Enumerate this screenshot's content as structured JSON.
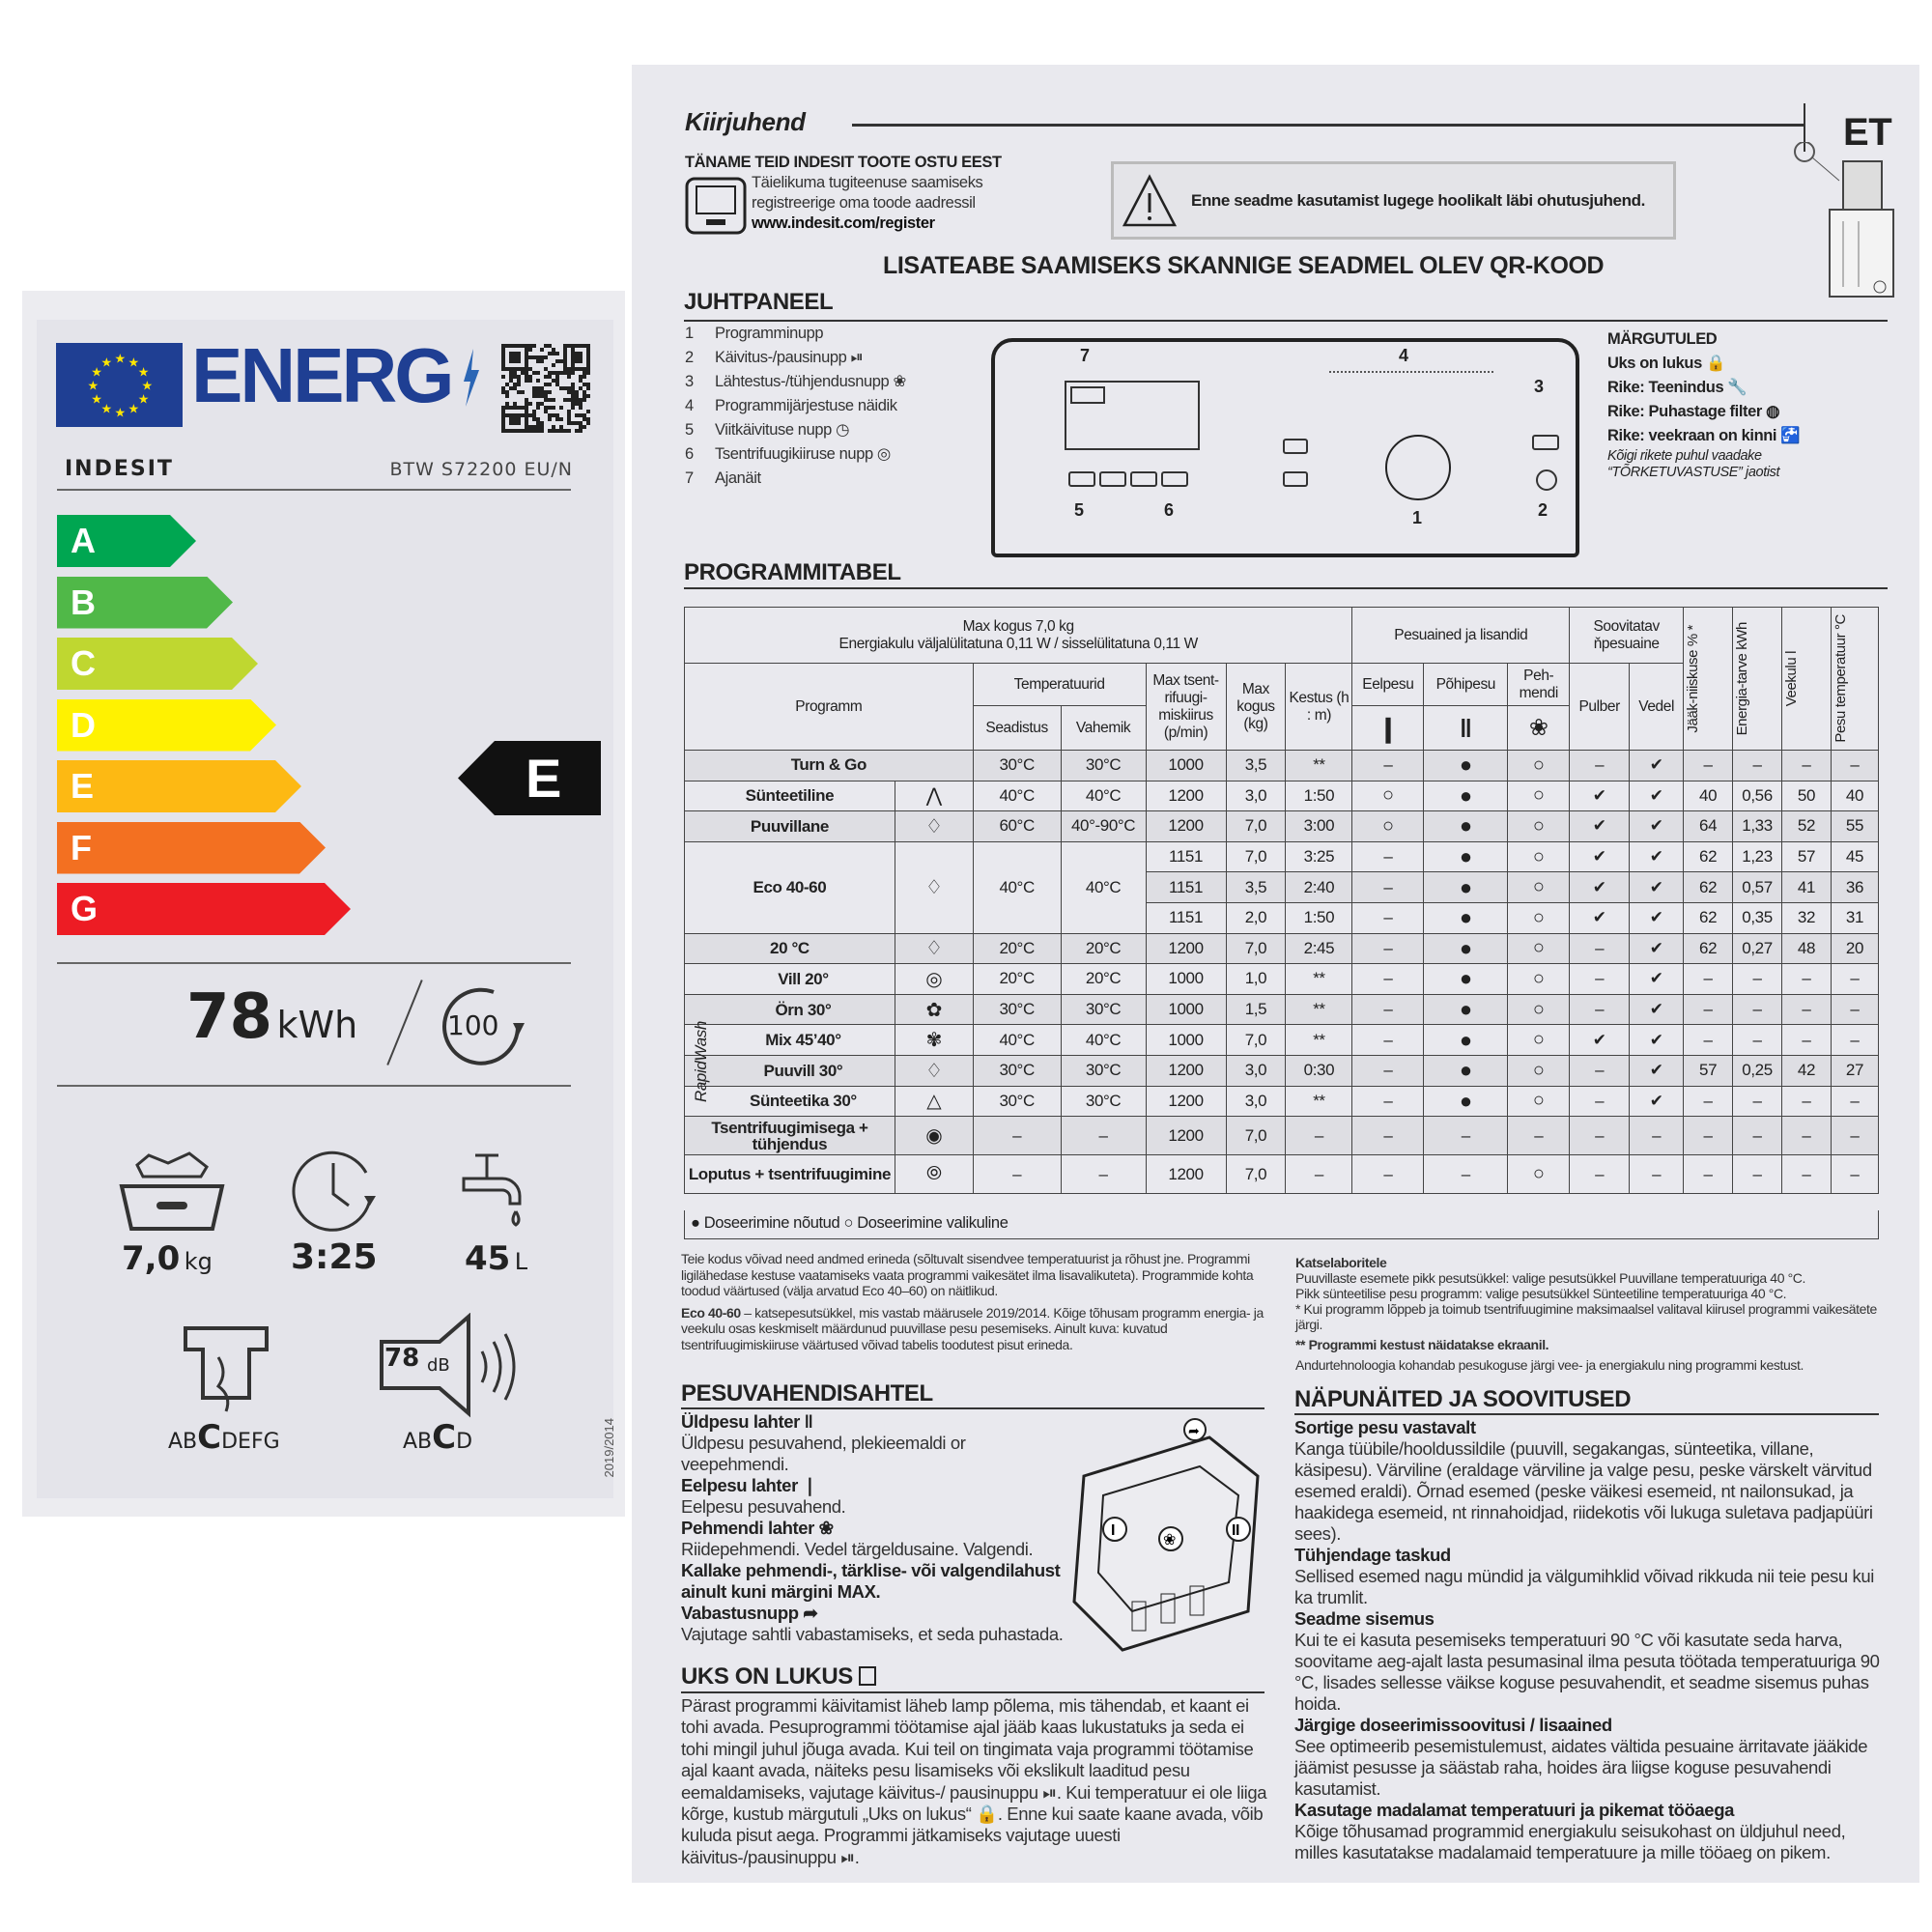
{
  "energy_label": {
    "title": "ENERG",
    "brand": "INDESIT",
    "model": "BTW S72200 EU/N",
    "classes": [
      {
        "letter": "A",
        "color": "#00a651"
      },
      {
        "letter": "B",
        "color": "#50b848"
      },
      {
        "letter": "C",
        "color": "#bfd730"
      },
      {
        "letter": "D",
        "color": "#fff200"
      },
      {
        "letter": "E",
        "color": "#fdb913"
      },
      {
        "letter": "F",
        "color": "#f37021"
      },
      {
        "letter": "G",
        "color": "#ed1c24"
      }
    ],
    "rating": "E",
    "energy_value": "78",
    "energy_unit": "kWh",
    "cycles": "100",
    "capacity_value": "7,0",
    "capacity_unit": "kg",
    "duration": "3:25",
    "water_value": "45",
    "water_unit": "L",
    "spin_class_before": "AB",
    "spin_class": "C",
    "spin_class_after": "DEFG",
    "noise_value": "78",
    "noise_unit": "dB",
    "noise_class_before": "AB",
    "noise_class": "C",
    "noise_class_after": "D",
    "regulation": "2019/2014"
  },
  "leaflet": {
    "title": "Kiirjuhend",
    "lang": "ET",
    "thanks_title": "TÄNAME TEID INDESIT TOOTE OSTU EEST",
    "thanks_lines": [
      "Täielikuma tugiteenuse saamiseks",
      "registreerige oma toode aadressil",
      "www.indesit.com/register"
    ],
    "warning": "Enne seadme kasutamist lugege hoolikalt läbi ohutusjuhend.",
    "qr_heading": "LISATEABE SAAMISEKS SKANNIGE SEADMEL OLEV QR-KOOD",
    "panel_title": "JUHTPANEEL",
    "panel_items": [
      {
        "n": "1",
        "label": "Programminupp"
      },
      {
        "n": "2",
        "label": "Käivitus-/pausinupp ⏯"
      },
      {
        "n": "3",
        "label": "Lähtestus-/tühjendusnupp ❀"
      },
      {
        "n": "4",
        "label": "Programmijärjestuse näidik"
      },
      {
        "n": "5",
        "label": "Viitkäivituse nupp ◷"
      },
      {
        "n": "6",
        "label": "Tsentrifuugikiiruse nupp ◎"
      },
      {
        "n": "7",
        "label": "Ajanäit"
      }
    ],
    "diagram_numbers": [
      "7",
      "4",
      "3",
      "5",
      "6",
      "1",
      "2"
    ],
    "indicators_title": "MÄRGUTULED",
    "indicators": [
      "Uks on lukus 🔒",
      "Rike: Teenindus 🔧",
      "Rike: Puhastage filter ◍",
      "Rike: veekraan on kinni 🚰"
    ],
    "indicators_note": "Kõigi rikete puhul vaadake “TÕRKETUVASTUSE” jaotist",
    "table_title": "PROGRAMMITABEL",
    "table": {
      "max_load": "Max kogus 7,0 kg",
      "power": "Energiakulu väljalülitatuna 0,11 W / sisselülitatuna 0,11 W",
      "detergents": "Pesuained ja lisandid",
      "recommended": "Soovitatav ňpesuaine",
      "program": "Programm",
      "temps": "Temperatuurid",
      "setting": "Seadistus",
      "range": "Vahemik",
      "spin": "Max tsent-rifuugi-miskiirus (p/min)",
      "load": "Max kogus (kg)",
      "duration": "Kestus (h : m)",
      "prewash": "Eelpesu",
      "mainwash": "Põhipesu",
      "softener": "Peh-mendi",
      "powder": "Pulber",
      "liquid": "Vedel",
      "moisture": "Jääk-niiskuse % *",
      "energy": "Energia-tarve kWh",
      "water": "Veekulu l",
      "wash_temp": "Pesu temperatuur °C",
      "rapidwash": "RapidWash",
      "programs": [
        {
          "name": "Turn & Go",
          "icon": "",
          "set": "30°C",
          "range": "30°C",
          "rows": [
            [
              "1000",
              "3,5",
              "**",
              "–",
              "●",
              "○",
              "–",
              "✔",
              "–",
              "–",
              "–",
              "–"
            ]
          ]
        },
        {
          "name": "Sünteetiline",
          "icon": "synthetic-icon",
          "set": "40°C",
          "range": "40°C",
          "rows": [
            [
              "1200",
              "3,0",
              "1:50",
              "○",
              "●",
              "○",
              "✔",
              "✔",
              "40",
              "0,56",
              "50",
              "40"
            ]
          ]
        },
        {
          "name": "Puuvillane",
          "icon": "cotton-icon",
          "set": "60°C",
          "range": "40°-90°C",
          "rows": [
            [
              "1200",
              "7,0",
              "3:00",
              "○",
              "●",
              "○",
              "✔",
              "✔",
              "64",
              "1,33",
              "52",
              "55"
            ]
          ]
        },
        {
          "name": "Eco 40-60",
          "icon": "eco-icon",
          "set": "40°C",
          "range": "40°C",
          "rows": [
            [
              "1151",
              "7,0",
              "3:25",
              "–",
              "●",
              "○",
              "✔",
              "✔",
              "62",
              "1,23",
              "57",
              "45"
            ],
            [
              "1151",
              "3,5",
              "2:40",
              "–",
              "●",
              "○",
              "✔",
              "✔",
              "62",
              "0,57",
              "41",
              "36"
            ],
            [
              "1151",
              "2,0",
              "1:50",
              "–",
              "●",
              "○",
              "✔",
              "✔",
              "62",
              "0,35",
              "32",
              "31"
            ]
          ]
        },
        {
          "name": "20 °C",
          "icon": "20c-icon",
          "set": "20°C",
          "range": "20°C",
          "rows": [
            [
              "1200",
              "7,0",
              "2:45",
              "–",
              "●",
              "○",
              "–",
              "✔",
              "62",
              "0,27",
              "48",
              "20"
            ]
          ]
        },
        {
          "name": "Vill 20°",
          "icon": "wool-icon",
          "set": "20°C",
          "range": "20°C",
          "rapid": true,
          "rows": [
            [
              "1000",
              "1,0",
              "**",
              "–",
              "●",
              "○",
              "–",
              "✔",
              "–",
              "–",
              "–",
              "–"
            ]
          ]
        },
        {
          "name": "Örn 30°",
          "icon": "delicate-icon",
          "set": "30°C",
          "range": "30°C",
          "rapid": true,
          "rows": [
            [
              "1000",
              "1,5",
              "**",
              "–",
              "●",
              "○",
              "–",
              "✔",
              "–",
              "–",
              "–",
              "–"
            ]
          ]
        },
        {
          "name": "Mix 45’40°",
          "icon": "mix-icon",
          "set": "40°C",
          "range": "40°C",
          "rapid": true,
          "rows": [
            [
              "1000",
              "7,0",
              "**",
              "–",
              "●",
              "○",
              "✔",
              "✔",
              "–",
              "–",
              "–",
              "–"
            ]
          ]
        },
        {
          "name": "Puuvill 30°",
          "icon": "cotton30-icon",
          "set": "30°C",
          "range": "30°C",
          "rapid": true,
          "rows": [
            [
              "1200",
              "3,0",
              "0:30",
              "–",
              "●",
              "○",
              "–",
              "✔",
              "57",
              "0,25",
              "42",
              "27"
            ]
          ]
        },
        {
          "name": "Sünteetika 30°",
          "icon": "synthetic30-icon",
          "set": "30°C",
          "range": "30°C",
          "rapid": true,
          "rows": [
            [
              "1200",
              "3,0",
              "**",
              "–",
              "●",
              "○",
              "–",
              "✔",
              "–",
              "–",
              "–",
              "–"
            ]
          ]
        },
        {
          "name": "Tsentrifuugimisega + tühjendus",
          "icon": "spin-drain-icon",
          "set": "–",
          "range": "–",
          "rows": [
            [
              "1200",
              "7,0",
              "–",
              "–",
              "–",
              "–",
              "–",
              "–",
              "–",
              "–",
              "–",
              "–"
            ]
          ]
        },
        {
          "name": "Loputus + tsentrifuugimine",
          "icon": "rinse-spin-icon",
          "set": "–",
          "range": "–",
          "rows": [
            [
              "1200",
              "7,0",
              "–",
              "–",
              "–",
              "○",
              "–",
              "–",
              "–",
              "–",
              "–",
              "–"
            ]
          ]
        }
      ],
      "legend_required": "Doseerimine nõutud",
      "legend_optional": "Doseerimine valikuline"
    },
    "notes_left": [
      "Teie kodus võivad need andmed erineda (sõltuvalt sisendvee temperatuurist ja rõhust jne. Programmi ligilähedase kestuse vaatamiseks vaata programmi vaikesätet ilma lisavalikuteta). Programmide kohta toodud väärtused (välja arvatud Eco 40–60) on näitlikud."
    ],
    "eco_note_bold": "Eco 40-60",
    "eco_note": " – katsepesutsükkel, mis vastab määrusele 2019/2014. Kõige tõhusam programm energia- ja veekulu osas keskmiselt määrdunud puuvillase pesu pesemiseks. Ainult kuva: kuvatud tsentrifuugimiskiiruse väärtused võivad tabelis toodutest pisut erineda.",
    "lab_title": "Katselaboritele",
    "lab_lines": [
      "Puuvillaste esemete pikk pesutsükkel:  valige pesutsükkel Puuvillane temperatuuriga 40 °C.",
      "Pikk sünteetilise pesu programm:  valige pesutsükkel Sünteetiline temperatuuriga 40 °C.",
      "* Kui programm lõppeb ja toimub tsentrifuugimine maksimaalsel valitaval kiirusel programmi vaikesätete järgi."
    ],
    "lab_duration_note": "** Programmi kestust näidatakse ekraanil.",
    "lab_sensor_note": "Andurtehnoloogia kohandab pesukoguse järgi vee- ja energiakulu ning programmi kestust.",
    "drawer_title": "PESUVAHENDISAHTEL",
    "drawer": [
      {
        "title": "Üldpesu lahter ‖",
        "text": "Üldpesu pesuvahend, plekieemaldi or veepehmendi."
      },
      {
        "title": "Eelpesu lahter ❘",
        "text": "Eelpesu pesuvahend."
      },
      {
        "title": "Pehmendi lahter ❀",
        "text": "Riidepehmendi. Vedel tärgeldusaine. Valgendi.",
        "bold": "Kallake pehmendi-, tärklise- või valgendilahust ainult kuni märgini MAX."
      },
      {
        "title": "Vabastusnupp ➦",
        "text": "Vajutage sahtli vabastamiseks, et seda puhastada."
      }
    ],
    "lock_title": "UKS ON LUKUS",
    "lock_text": "Pärast programmi käivitamist läheb lamp põlema, mis tähendab, et kaant ei tohi avada. Pesuprogrammi töötamise ajal jääb kaas lukustatuks ja seda ei tohi mingil juhul jõuga avada. Kui teil on tingimata vaja programmi töötamise ajal kaant avada, näiteks pesu lisamiseks või ekslikult laaditud pesu eemaldamiseks, vajutage käivitus-/ pausinuppu ⏯. Kui temperatuur ei ole liiga kõrge, kustub märgutuli „Uks on lukus“ 🔒. Enne kui saate kaane avada, võib kuluda pisut aega. Programmi jätkamiseks vajutage uuesti käivitus-/pausinuppu ⏯.",
    "tips_title": "NÄPUNÄITED JA SOOVITUSED",
    "tips": [
      {
        "title": "Sortige pesu vastavalt",
        "text": "Kanga tüübile/hooldussildile (puuvill, segakangas, sünteetika, villane, käsipesu). Värviline (eraldage värviline ja valge pesu, peske värskelt värvitud esemed eraldi). Õrnad esemed (peske väikesi esemeid, nt nailonsukad, ja haakidega esemeid, nt rinnahoidjad, riidekotis või lukuga suletava padjapüüri sees)."
      },
      {
        "title": "Tühjendage taskud",
        "text": "Sellised esemed nagu mündid ja välgumihklid võivad rikkuda nii teie pesu kui ka trumlit."
      },
      {
        "title": "Seadme sisemus",
        "text": "Kui te ei kasuta pesemiseks temperatuuri 90 °C või kasutate seda harva, soovitame aeg-ajalt lasta pesumasinal ilma pesuta töötada temperatuuriga 90 °C, lisades sellesse väikse koguse pesuvahendit, et seadme sisemus puhas hoida."
      },
      {
        "title": "Järgige doseerimissoovitusi / lisaained",
        "text": "See optimeerib pesemistulemust, aidates vältida pesuaine ärritavate jääkide jäämist pesusse ja säästab raha, hoides ära liigse koguse pesuvahendi kasutamist."
      },
      {
        "title": "Kasutage madalamat temperatuuri ja pikemat tööaega",
        "text": "Kõige tõhusamad programmid energiakulu seisukohast on üldjuhul need, milles kasutatakse madalamaid temperatuure ja mille tööaeg on pikem."
      }
    ]
  }
}
